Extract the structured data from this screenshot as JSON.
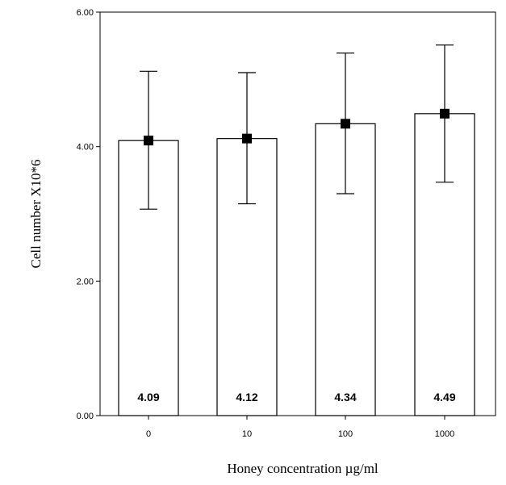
{
  "chart_data": {
    "type": "bar",
    "xlabel": "Honey concentration µg/ml",
    "ylabel": "Cell number X10*6",
    "categories": [
      "0",
      "10",
      "100",
      "1000"
    ],
    "values": [
      4.09,
      4.12,
      4.34,
      4.49
    ],
    "value_labels": [
      "4.09",
      "4.12",
      "4.34",
      "4.49"
    ],
    "error_upper": [
      5.12,
      5.1,
      5.39,
      5.51
    ],
    "error_lower": [
      3.07,
      3.15,
      3.3,
      3.47
    ],
    "ylim": [
      0,
      6
    ],
    "yticks": [
      0,
      2,
      4,
      6
    ],
    "ytick_labels": [
      "0.00",
      "2.00",
      "4.00",
      "6.00"
    ],
    "grid": false,
    "legend": "none"
  }
}
